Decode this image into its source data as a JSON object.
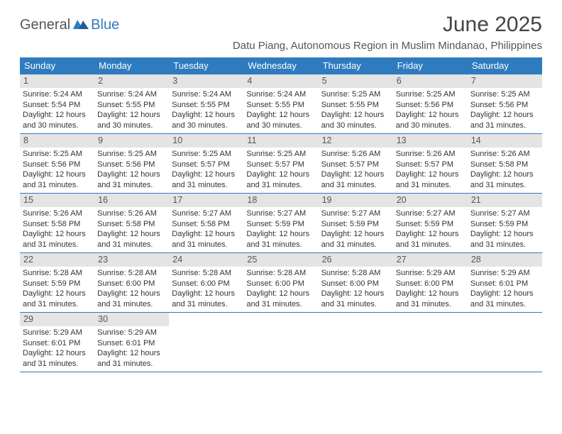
{
  "brand": {
    "word1": "General",
    "word2": "Blue"
  },
  "title": "June 2025",
  "subtitle": "Datu Piang, Autonomous Region in Muslim Mindanao, Philippines",
  "colors": {
    "header_bg": "#2f7bbf",
    "header_text": "#ffffff",
    "daynum_bg": "#e4e4e4",
    "body_text": "#333333",
    "rule": "#2f7bbf"
  },
  "typography": {
    "title_fontsize": 30,
    "subtitle_fontsize": 15,
    "dow_fontsize": 13,
    "daynum_fontsize": 12.5,
    "body_fontsize": 11
  },
  "days_of_week": [
    "Sunday",
    "Monday",
    "Tuesday",
    "Wednesday",
    "Thursday",
    "Friday",
    "Saturday"
  ],
  "weeks": [
    [
      {
        "n": "1",
        "sr": "5:24 AM",
        "ss": "5:54 PM",
        "dl": "12 hours and 30 minutes."
      },
      {
        "n": "2",
        "sr": "5:24 AM",
        "ss": "5:55 PM",
        "dl": "12 hours and 30 minutes."
      },
      {
        "n": "3",
        "sr": "5:24 AM",
        "ss": "5:55 PM",
        "dl": "12 hours and 30 minutes."
      },
      {
        "n": "4",
        "sr": "5:24 AM",
        "ss": "5:55 PM",
        "dl": "12 hours and 30 minutes."
      },
      {
        "n": "5",
        "sr": "5:25 AM",
        "ss": "5:55 PM",
        "dl": "12 hours and 30 minutes."
      },
      {
        "n": "6",
        "sr": "5:25 AM",
        "ss": "5:56 PM",
        "dl": "12 hours and 30 minutes."
      },
      {
        "n": "7",
        "sr": "5:25 AM",
        "ss": "5:56 PM",
        "dl": "12 hours and 31 minutes."
      }
    ],
    [
      {
        "n": "8",
        "sr": "5:25 AM",
        "ss": "5:56 PM",
        "dl": "12 hours and 31 minutes."
      },
      {
        "n": "9",
        "sr": "5:25 AM",
        "ss": "5:56 PM",
        "dl": "12 hours and 31 minutes."
      },
      {
        "n": "10",
        "sr": "5:25 AM",
        "ss": "5:57 PM",
        "dl": "12 hours and 31 minutes."
      },
      {
        "n": "11",
        "sr": "5:25 AM",
        "ss": "5:57 PM",
        "dl": "12 hours and 31 minutes."
      },
      {
        "n": "12",
        "sr": "5:26 AM",
        "ss": "5:57 PM",
        "dl": "12 hours and 31 minutes."
      },
      {
        "n": "13",
        "sr": "5:26 AM",
        "ss": "5:57 PM",
        "dl": "12 hours and 31 minutes."
      },
      {
        "n": "14",
        "sr": "5:26 AM",
        "ss": "5:58 PM",
        "dl": "12 hours and 31 minutes."
      }
    ],
    [
      {
        "n": "15",
        "sr": "5:26 AM",
        "ss": "5:58 PM",
        "dl": "12 hours and 31 minutes."
      },
      {
        "n": "16",
        "sr": "5:26 AM",
        "ss": "5:58 PM",
        "dl": "12 hours and 31 minutes."
      },
      {
        "n": "17",
        "sr": "5:27 AM",
        "ss": "5:58 PM",
        "dl": "12 hours and 31 minutes."
      },
      {
        "n": "18",
        "sr": "5:27 AM",
        "ss": "5:59 PM",
        "dl": "12 hours and 31 minutes."
      },
      {
        "n": "19",
        "sr": "5:27 AM",
        "ss": "5:59 PM",
        "dl": "12 hours and 31 minutes."
      },
      {
        "n": "20",
        "sr": "5:27 AM",
        "ss": "5:59 PM",
        "dl": "12 hours and 31 minutes."
      },
      {
        "n": "21",
        "sr": "5:27 AM",
        "ss": "5:59 PM",
        "dl": "12 hours and 31 minutes."
      }
    ],
    [
      {
        "n": "22",
        "sr": "5:28 AM",
        "ss": "5:59 PM",
        "dl": "12 hours and 31 minutes."
      },
      {
        "n": "23",
        "sr": "5:28 AM",
        "ss": "6:00 PM",
        "dl": "12 hours and 31 minutes."
      },
      {
        "n": "24",
        "sr": "5:28 AM",
        "ss": "6:00 PM",
        "dl": "12 hours and 31 minutes."
      },
      {
        "n": "25",
        "sr": "5:28 AM",
        "ss": "6:00 PM",
        "dl": "12 hours and 31 minutes."
      },
      {
        "n": "26",
        "sr": "5:28 AM",
        "ss": "6:00 PM",
        "dl": "12 hours and 31 minutes."
      },
      {
        "n": "27",
        "sr": "5:29 AM",
        "ss": "6:00 PM",
        "dl": "12 hours and 31 minutes."
      },
      {
        "n": "28",
        "sr": "5:29 AM",
        "ss": "6:01 PM",
        "dl": "12 hours and 31 minutes."
      }
    ],
    [
      {
        "n": "29",
        "sr": "5:29 AM",
        "ss": "6:01 PM",
        "dl": "12 hours and 31 minutes."
      },
      {
        "n": "30",
        "sr": "5:29 AM",
        "ss": "6:01 PM",
        "dl": "12 hours and 31 minutes."
      },
      null,
      null,
      null,
      null,
      null
    ]
  ],
  "labels": {
    "sunrise": "Sunrise: ",
    "sunset": "Sunset: ",
    "daylight": "Daylight: "
  }
}
